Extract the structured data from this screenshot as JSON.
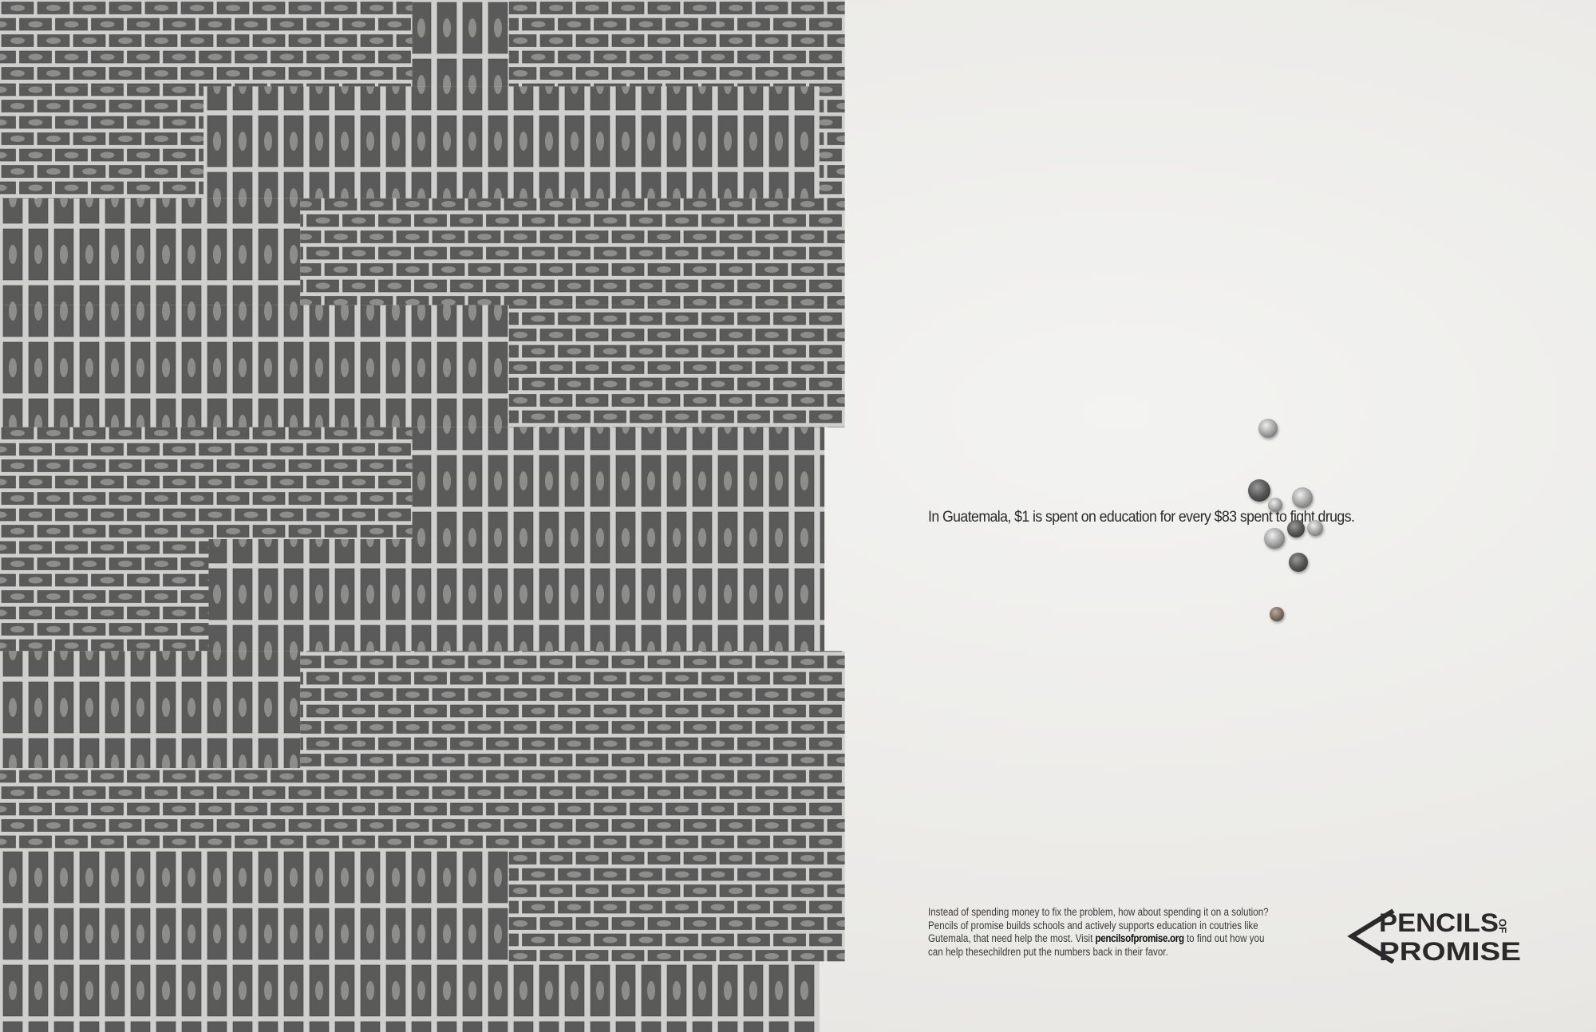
{
  "headline": "In Guatemala, $1 is spent on education for every $83 spent to fight drugs.",
  "body": {
    "line1": "Instead of spending money to fix the problem, how about spending it on a solution?",
    "line2": "Pencils of promise builds schools and actively supports education in coutries like",
    "line3_pre": "Gutemala, that need help the most. Visit ",
    "link": "pencilsofpromise.org",
    "line3_post": " to find out how you",
    "line4": "can help thesechildren put the numbers back in their favor."
  },
  "logo": {
    "text_top": "PENCILS",
    "text_of": "OF",
    "text_bottom": "PROMISE"
  },
  "colors": {
    "bill": "#5a5a5a",
    "paper": "#ecebe8",
    "ink": "#222222"
  },
  "imagery": {
    "left": "wall of dollar bills",
    "right": "scattered coins"
  }
}
